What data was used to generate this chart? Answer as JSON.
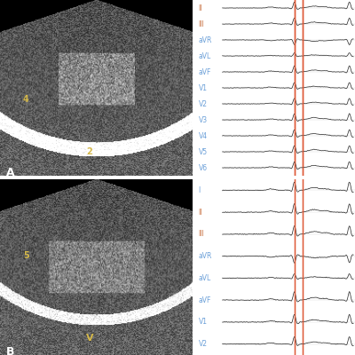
{
  "panel_A_label": "A",
  "panel_B_label": "B",
  "ecg_leads_top": [
    "II",
    "III",
    "aVR",
    "aVL",
    "aVF",
    "V1",
    "V2",
    "V3",
    "V4",
    "V5",
    "V6"
  ],
  "ecg_leads_bottom": [
    "I",
    "II",
    "III",
    "aVR",
    "aVL",
    "aVF",
    "V1",
    "V2"
  ],
  "lead_colors_top": [
    "#c87040",
    "#c87040",
    "#6a9fd8",
    "#6a9fd8",
    "#6a9fd8",
    "#6a9fd8",
    "#6a9fd8",
    "#6a9fd8",
    "#6a9fd8",
    "#6a9fd8",
    "#6a9fd8"
  ],
  "lead_colors_bottom": [
    "#6a9fd8",
    "#c87040",
    "#c87040",
    "#6a9fd8",
    "#6a9fd8",
    "#6a9fd8",
    "#6a9fd8",
    "#6a9fd8"
  ],
  "red_line_color": "#e05c3a",
  "background_color": "#ffffff",
  "echo_bg": "#000000",
  "label_color": "#ffffff",
  "anno_color": "#d4b84a",
  "anno_text_A1": "2",
  "anno_text_A2": "4",
  "anno_text_B1": "V",
  "anno_text_B2": "5",
  "fig_width": 4.0,
  "fig_height": 4.0,
  "dpi": 100
}
